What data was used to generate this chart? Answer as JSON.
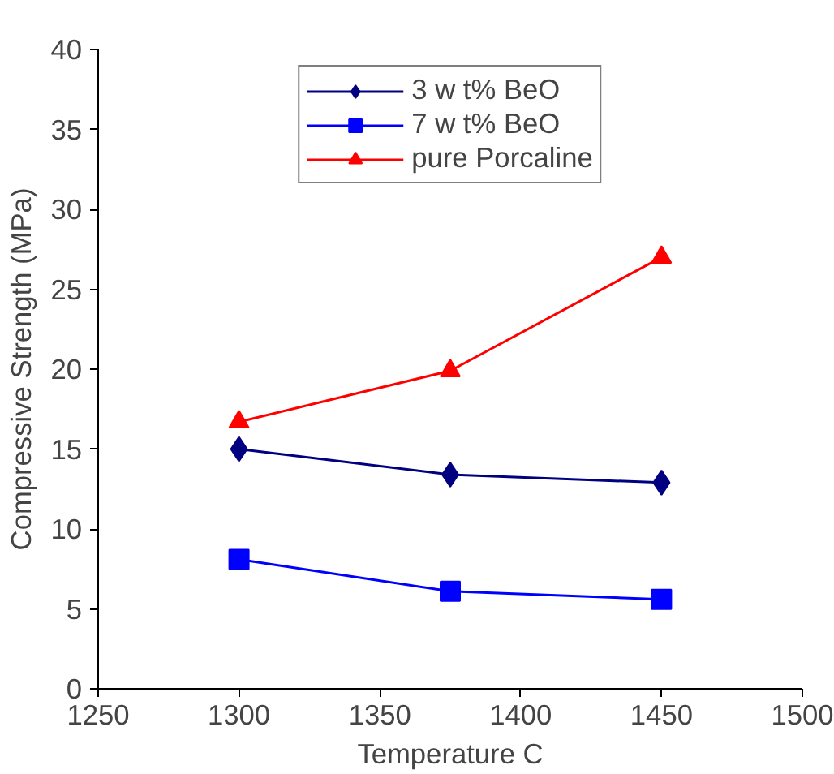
{
  "chart_data": {
    "type": "line",
    "xlabel": "Temperature C",
    "ylabel": "Compressive Strength (MPa)",
    "x": [
      1300,
      1375,
      1450
    ],
    "series": [
      {
        "name": "3 w t% BeO",
        "color": "#000080",
        "values": [
          15.0,
          13.4,
          12.9
        ],
        "marker": "diamond"
      },
      {
        "name": "7 w t% BeO",
        "color": "#0000ff",
        "values": [
          8.1,
          6.1,
          5.6
        ],
        "marker": "square"
      },
      {
        "name": "pure Porcaline",
        "color": "#ff0000",
        "values": [
          16.7,
          19.9,
          27.0
        ],
        "marker": "triangle"
      }
    ],
    "xlim": [
      1250,
      1500
    ],
    "xticks": [
      1250,
      1300,
      1350,
      1400,
      1450,
      1500
    ],
    "ylim": [
      0,
      40
    ],
    "yticks": [
      0,
      5,
      10,
      15,
      20,
      25,
      30,
      35,
      40
    ],
    "grid": false,
    "legend": "top"
  }
}
